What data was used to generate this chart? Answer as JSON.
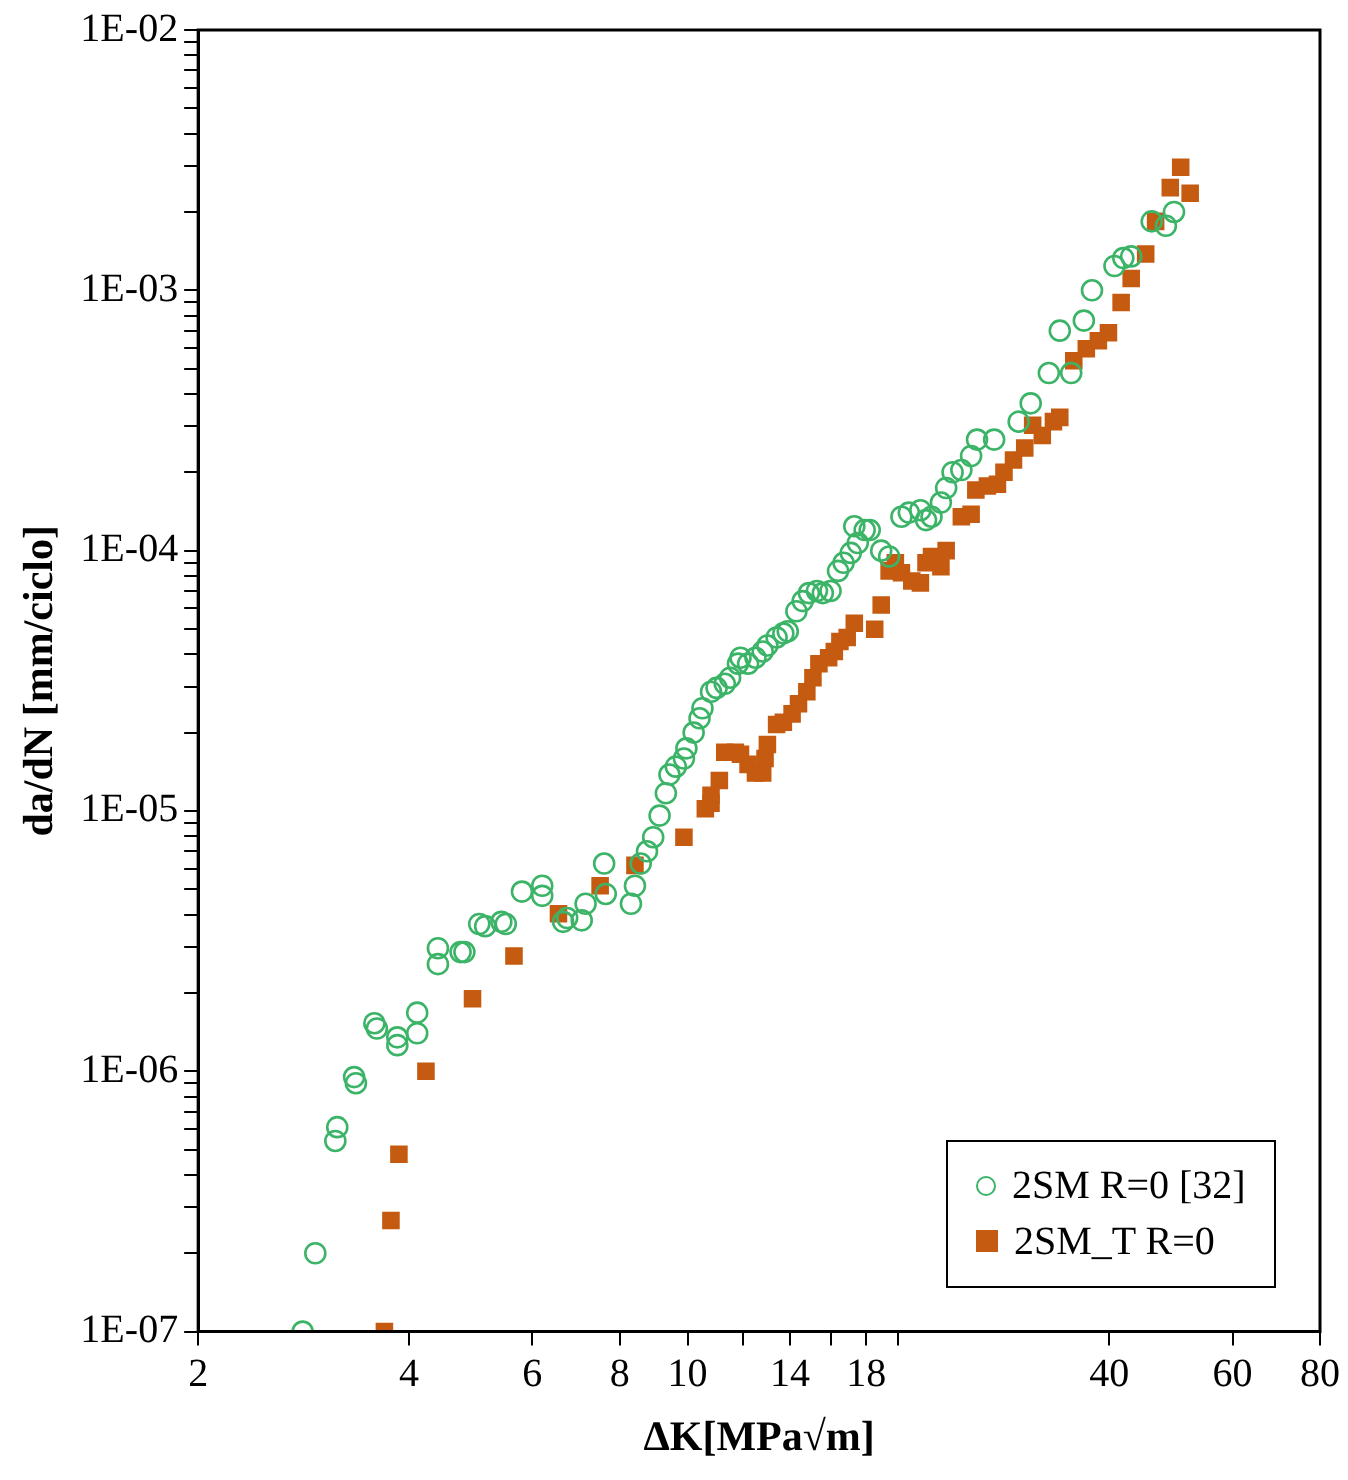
{
  "chart_data": {
    "type": "scatter",
    "xlabel": "ΔK[MPa√m]",
    "ylabel": "da/dN [mm/ciclo]",
    "log": "xy",
    "grid": false,
    "legend": "bottom right",
    "xlim": [
      2,
      80
    ],
    "ylim": [
      1e-07,
      0.01
    ],
    "xticks": [
      2,
      4,
      6,
      8,
      10,
      {
        "value": 12,
        "label": null
      },
      14,
      {
        "value": 16,
        "label": null
      },
      18,
      {
        "value": 20,
        "label": null
      },
      40,
      60,
      80
    ],
    "yticks": [
      {
        "value": 1e-07,
        "label": "1E-07"
      },
      {
        "value": 2e-07,
        "label": null
      },
      {
        "value": 3e-07,
        "label": null
      },
      {
        "value": 4e-07,
        "label": null
      },
      {
        "value": 5e-07,
        "label": null
      },
      {
        "value": 6e-07,
        "label": null
      },
      {
        "value": 7e-07,
        "label": null
      },
      {
        "value": 8e-07,
        "label": null
      },
      {
        "value": 9e-07,
        "label": null
      },
      {
        "value": 1e-06,
        "label": "1E-06"
      },
      {
        "value": 2e-06,
        "label": null
      },
      {
        "value": 3e-06,
        "label": null
      },
      {
        "value": 4e-06,
        "label": null
      },
      {
        "value": 5e-06,
        "label": null
      },
      {
        "value": 6e-06,
        "label": null
      },
      {
        "value": 7e-06,
        "label": null
      },
      {
        "value": 8e-06,
        "label": null
      },
      {
        "value": 9e-06,
        "label": null
      },
      {
        "value": 1e-05,
        "label": "1E-05"
      },
      {
        "value": 2e-05,
        "label": null
      },
      {
        "value": 3e-05,
        "label": null
      },
      {
        "value": 4e-05,
        "label": null
      },
      {
        "value": 5e-05,
        "label": null
      },
      {
        "value": 6e-05,
        "label": null
      },
      {
        "value": 7e-05,
        "label": null
      },
      {
        "value": 8e-05,
        "label": null
      },
      {
        "value": 9e-05,
        "label": null
      },
      {
        "value": 0.0001,
        "label": "1E-04"
      },
      {
        "value": 0.0002,
        "label": null
      },
      {
        "value": 0.0003,
        "label": null
      },
      {
        "value": 0.0004,
        "label": null
      },
      {
        "value": 0.0005,
        "label": null
      },
      {
        "value": 0.0006,
        "label": null
      },
      {
        "value": 0.0007,
        "label": null
      },
      {
        "value": 0.0008,
        "label": null
      },
      {
        "value": 0.0009,
        "label": null
      },
      {
        "value": 0.001,
        "label": "1E-03"
      },
      {
        "value": 0.002,
        "label": null
      },
      {
        "value": 0.003,
        "label": null
      },
      {
        "value": 0.004,
        "label": null
      },
      {
        "value": 0.005,
        "label": null
      },
      {
        "value": 0.006,
        "label": null
      },
      {
        "value": 0.007,
        "label": null
      },
      {
        "value": 0.008,
        "label": null
      },
      {
        "value": 0.009,
        "label": null
      },
      {
        "value": 0.01,
        "label": "1E-02"
      }
    ],
    "series": [
      {
        "name": "2SM R=0 [32]",
        "color": "#3cb468",
        "marker": "circle",
        "x": [
          2.82,
          2.94,
          3.14,
          3.16,
          3.34,
          3.36,
          3.57,
          3.6,
          3.85,
          3.85,
          4.11,
          4.11,
          4.4,
          4.4,
          4.74,
          4.8,
          5.04,
          5.14,
          5.42,
          5.5,
          5.8,
          6.2,
          6.2,
          6.64,
          6.73,
          7.06,
          7.15,
          7.6,
          7.64,
          8.3,
          8.41,
          8.57,
          8.75,
          8.93,
          9.12,
          9.31,
          9.42,
          9.62,
          9.88,
          9.96,
          10.2,
          10.4,
          10.5,
          10.8,
          11.0,
          11.3,
          11.5,
          11.8,
          11.9,
          12.2,
          12.5,
          12.8,
          13.0,
          13.4,
          13.7,
          13.9,
          14.3,
          14.6,
          14.9,
          15.3,
          15.6,
          16.0,
          16.4,
          16.7,
          17.1,
          17.3,
          17.5,
          17.9,
          18.2,
          18.9,
          19.4,
          20.2,
          20.7,
          21.5,
          21.9,
          22.3,
          23.0,
          23.4,
          23.9,
          24.6,
          25.4,
          25.9,
          27.4,
          29.7,
          30.9,
          32.8,
          35.3,
          34.0,
          36.8,
          37.8,
          40.7,
          41.9,
          43.0,
          46.0,
          48.2,
          49.5
        ],
        "values": [
          1e-07,
          2e-07,
          5.4e-07,
          6.1e-07,
          9.5e-07,
          9e-07,
          1.53e-06,
          1.46e-06,
          1.35e-06,
          1.26e-06,
          1.68e-06,
          1.4e-06,
          2.97e-06,
          2.58e-06,
          2.87e-06,
          2.87e-06,
          3.68e-06,
          3.61e-06,
          3.75e-06,
          3.68e-06,
          4.9e-06,
          5.16e-06,
          4.72e-06,
          3.75e-06,
          3.88e-06,
          3.8e-06,
          4.4e-06,
          6.28e-06,
          4.8e-06,
          4.4e-06,
          5.16e-06,
          6.28e-06,
          7e-06,
          7.93e-06,
          9.6e-06,
          1.17e-05,
          1.38e-05,
          1.48e-05,
          1.59e-05,
          1.74e-05,
          2e-05,
          2.27e-05,
          2.48e-05,
          2.87e-05,
          2.97e-05,
          3.08e-05,
          3.25e-05,
          3.68e-05,
          3.88e-05,
          3.68e-05,
          3.88e-05,
          4.1e-05,
          4.32e-05,
          4.64e-05,
          4.81e-05,
          4.9e-05,
          5.85e-05,
          6.4e-05,
          6.87e-05,
          7e-05,
          6.87e-05,
          7e-05,
          8.36e-05,
          8.98e-05,
          9.8e-05,
          0.000124,
          0.000107,
          0.00012,
          0.00012,
          0.0001,
          9.5e-05,
          0.000135,
          0.00014,
          0.000143,
          0.000131,
          0.000135,
          0.000153,
          0.000174,
          0.0002,
          0.000204,
          0.000231,
          0.000267,
          0.000267,
          0.000313,
          0.000368,
          0.000481,
          0.000481,
          0.0007,
          0.000765,
          0.001,
          0.00124,
          0.00133,
          0.00135,
          0.00184,
          0.00177,
          0.002
        ]
      },
      {
        "name": "2SM_T R=0",
        "color": "#c55a11",
        "marker": "square",
        "x": [
          3.69,
          3.77,
          3.87,
          4.23,
          4.93,
          5.65,
          6.54,
          7.5,
          8.41,
          9.88,
          10.6,
          10.8,
          10.8,
          11.1,
          11.3,
          11.7,
          11.9,
          12.2,
          12.5,
          12.8,
          12.9,
          13.0,
          13.4,
          13.7,
          14.1,
          14.4,
          14.8,
          15.1,
          15.4,
          15.9,
          16.2,
          16.5,
          16.9,
          17.3,
          18.5,
          18.9,
          19.4,
          19.8,
          20.2,
          20.9,
          21.5,
          21.9,
          22.3,
          23.0,
          23.4,
          24.6,
          25.4,
          25.8,
          26.8,
          27.7,
          28.3,
          29.2,
          30.3,
          31.1,
          32.1,
          33.3,
          34.0,
          35.6,
          37.1,
          38.6,
          39.9,
          41.6,
          43.0,
          45.1,
          46.6,
          48.9,
          50.6,
          52.2
        ],
        "values": [
          1e-07,
          2.67e-07,
          4.8e-07,
          1e-06,
          1.9e-06,
          2.77e-06,
          4.03e-06,
          5.16e-06,
          6.18e-06,
          7.93e-06,
          1.02e-05,
          1.07e-05,
          1.15e-05,
          1.31e-05,
          1.68e-05,
          1.68e-05,
          1.65e-05,
          1.51e-05,
          1.4e-05,
          1.4e-05,
          1.59e-05,
          1.8e-05,
          2.15e-05,
          2.19e-05,
          2.36e-05,
          2.58e-05,
          2.87e-05,
          3.25e-05,
          3.68e-05,
          3.88e-05,
          4.1e-05,
          4.48e-05,
          4.64e-05,
          5.26e-05,
          4.99e-05,
          6.18e-05,
          8.36e-05,
          8.98e-05,
          8.22e-05,
          7.65e-05,
          7.52e-05,
          8.98e-05,
          9.5e-05,
          8.67e-05,
          0.0001,
          0.000135,
          0.000138,
          0.000171,
          0.000177,
          0.00018,
          0.0002,
          0.000223,
          0.000248,
          0.000303,
          0.000277,
          0.000313,
          0.000325,
          0.000536,
          0.000596,
          0.00064,
          0.000687,
          0.000898,
          0.00111,
          0.00138,
          0.00184,
          0.00248,
          0.00297,
          0.00236
        ]
      }
    ]
  }
}
